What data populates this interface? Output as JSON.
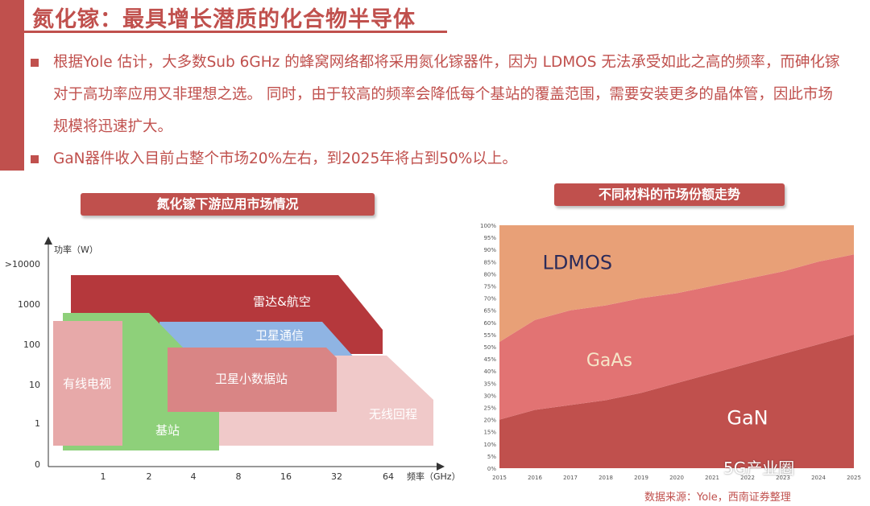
{
  "title": "氮化镓：最具增长潜质的化合物半导体",
  "bullets": [
    "根据Yole 估计，大多数Sub 6GHz 的蜂窝网络都将采用氮化镓器件，因为 LDMOS 无法承受如此之高的频率，而砷化镓对于高功率应用又非理想之选。 同时，由于较高的频率会降低每个基站的覆盖范围，需要安装更多的晶体管，因此市场规模将迅速扩大。",
    "GaN器件收入目前占整个市场20%左右，到2025年将占到50%以上。"
  ],
  "left_chart": {
    "header": "氮化镓下游应用市场情况",
    "y_axis_title": "功率（W）",
    "x_axis_title": "频率（GHz）",
    "y_ticks": [
      ">10000",
      "1000",
      "100",
      "10",
      "1",
      "0"
    ],
    "x_ticks": [
      "1",
      "2",
      "4",
      "8",
      "16",
      "32",
      "64"
    ],
    "regions": [
      {
        "label": "雷达&航空",
        "color": "#b5383c"
      },
      {
        "label": "卫星通信",
        "color": "#8fb4e3"
      },
      {
        "label": "卫星小数据站",
        "color": "#d98585"
      },
      {
        "label": "无线回程",
        "color": "#f0c9c9"
      },
      {
        "label": "有线电视",
        "color": "#e7a9a9"
      },
      {
        "label": "基站",
        "color": "#8ed07a"
      }
    ]
  },
  "right_chart_header": "不同材料的市场份额走势",
  "chart_data": {
    "type": "area",
    "title": "",
    "x": [
      "2015",
      "2016",
      "2017",
      "2018",
      "2019",
      "2020",
      "2021",
      "2022",
      "2023",
      "2024",
      "2025"
    ],
    "y_ticks": [
      "0%",
      "5%",
      "10%",
      "15%",
      "20%",
      "25%",
      "30%",
      "35%",
      "40%",
      "45%",
      "50%",
      "55%",
      "60%",
      "65%",
      "70%",
      "75%",
      "80%",
      "85%",
      "90%",
      "95%",
      "100%"
    ],
    "ylim": [
      0,
      100
    ],
    "stacked": true,
    "series": [
      {
        "name": "GaN",
        "values": [
          20,
          24,
          26,
          28,
          31,
          35,
          39,
          43,
          47,
          51,
          55
        ],
        "color": "#c0504d"
      },
      {
        "name": "GaAs",
        "values": [
          32,
          37,
          39,
          39,
          39,
          37,
          36,
          35,
          34,
          34,
          33
        ],
        "color": "#e27373"
      },
      {
        "name": "LDMOS",
        "values": [
          48,
          39,
          35,
          33,
          30,
          28,
          25,
          22,
          19,
          15,
          12
        ],
        "color": "#e8a077"
      }
    ]
  },
  "source": "数据来源：Yole，西南证券整理",
  "watermark": "5G产业圈"
}
